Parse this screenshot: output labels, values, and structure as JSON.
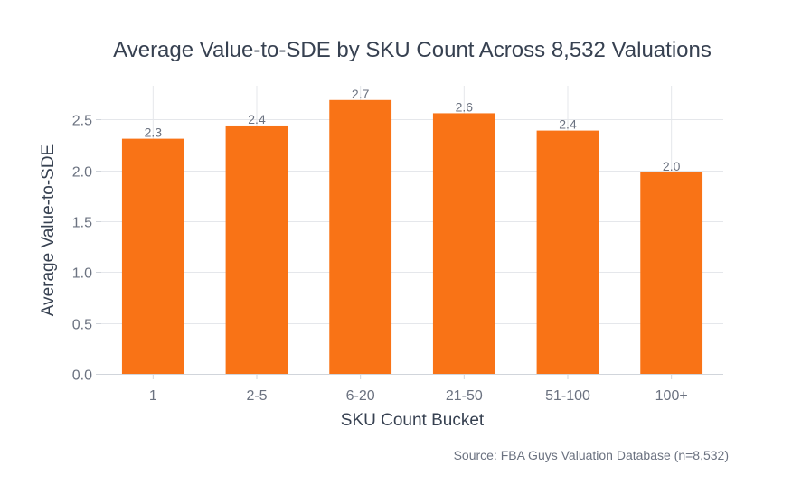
{
  "chart_data": {
    "type": "bar",
    "title": "Average Value-to-SDE by SKU Count Across 8,532 Valuations",
    "xlabel": "SKU Count Bucket",
    "ylabel": "Average Value-to-SDE",
    "categories": [
      "1",
      "2-5",
      "6-20",
      "21-50",
      "51-100",
      "100+"
    ],
    "values": [
      2.31,
      2.44,
      2.69,
      2.56,
      2.39,
      1.98
    ],
    "data_labels": [
      "2.3",
      "2.4",
      "2.7",
      "2.6",
      "2.4",
      "2.0"
    ],
    "ylim": [
      0,
      2.83
    ],
    "yticks": [
      0.0,
      0.5,
      1.0,
      1.5,
      2.0,
      2.5
    ],
    "ytick_labels": [
      "0.0",
      "0.5",
      "1.0",
      "1.5",
      "2.0",
      "2.5"
    ],
    "bar_color": "#f97316",
    "grid": true,
    "source": "Source: FBA Guys Valuation Database (n=8,532)"
  }
}
